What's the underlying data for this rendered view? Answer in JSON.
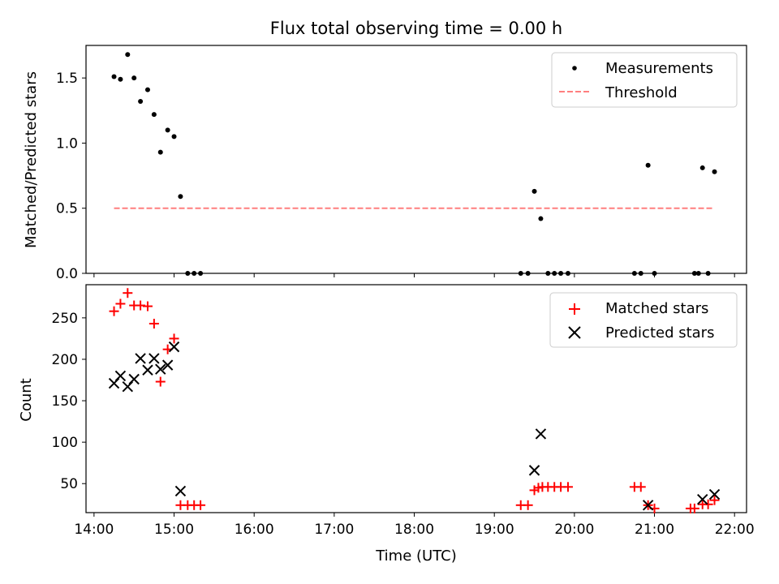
{
  "chart_data": [
    {
      "type": "scatter",
      "title": "Flux total observing time = 0.00 h",
      "ylabel": "Matched/Predicted stars",
      "xlabel": "",
      "xlim": [
        13.9,
        22.15
      ],
      "ylim": [
        0,
        1.75
      ],
      "yticks": [
        0,
        0.5,
        1.0,
        1.5
      ],
      "ytick_labels": [
        "0.0",
        "0.5",
        "1.0",
        "1.5"
      ],
      "xticks": [
        14,
        15,
        16,
        17,
        18,
        19,
        20,
        21,
        22
      ],
      "grid": false,
      "legend_position": "top-right",
      "series": [
        {
          "name": "Measurements",
          "kind": "points",
          "color": "#000000",
          "x": [
            14.25,
            14.33,
            14.42,
            14.5,
            14.58,
            14.67,
            14.75,
            14.83,
            14.92,
            15.0,
            15.08,
            15.17,
            15.25,
            15.33,
            19.33,
            19.42,
            19.5,
            19.58,
            19.67,
            19.75,
            19.83,
            19.92,
            20.75,
            20.83,
            20.92,
            21.0,
            21.5,
            21.55,
            21.6,
            21.67,
            21.75
          ],
          "y": [
            1.51,
            1.49,
            1.68,
            1.5,
            1.32,
            1.41,
            1.22,
            0.93,
            1.1,
            1.05,
            0.59,
            0.0,
            0.0,
            0.0,
            0.0,
            0.0,
            0.63,
            0.42,
            0.0,
            0.0,
            0.0,
            0.0,
            0.0,
            0.0,
            0.83,
            0.0,
            0.0,
            0.0,
            0.81,
            0.0,
            0.78
          ]
        },
        {
          "name": "Threshold",
          "kind": "dashed-line",
          "color": "#ff7f7f",
          "x": [
            14.25,
            21.75
          ],
          "y": [
            0.5,
            0.5
          ]
        }
      ]
    },
    {
      "type": "scatter",
      "title": "",
      "ylabel": "Count",
      "xlabel": "Time (UTC)",
      "xlim": [
        13.9,
        22.15
      ],
      "ylim": [
        15,
        290
      ],
      "yticks": [
        50,
        100,
        150,
        200,
        250
      ],
      "ytick_labels": [
        "50",
        "100",
        "150",
        "200",
        "250"
      ],
      "xticks": [
        14,
        15,
        16,
        17,
        18,
        19,
        20,
        21,
        22
      ],
      "xtick_labels": [
        "14:00",
        "15:00",
        "16:00",
        "17:00",
        "18:00",
        "19:00",
        "20:00",
        "21:00",
        "22:00"
      ],
      "grid": false,
      "legend_position": "top-right",
      "series": [
        {
          "name": "Matched stars",
          "kind": "plus",
          "color": "#ff0000",
          "x": [
            14.25,
            14.33,
            14.42,
            14.5,
            14.58,
            14.67,
            14.75,
            14.83,
            14.92,
            15.0,
            15.08,
            15.17,
            15.25,
            15.33,
            19.33,
            19.42,
            19.5,
            19.55,
            19.6,
            19.67,
            19.75,
            19.83,
            19.92,
            20.75,
            20.83,
            20.92,
            21.0,
            21.45,
            21.5,
            21.6,
            21.67,
            21.75
          ],
          "y": [
            258,
            267,
            280,
            265,
            265,
            264,
            243,
            173,
            212,
            225,
            24,
            24,
            24,
            24,
            24,
            24,
            42,
            45,
            46,
            46,
            46,
            46,
            46,
            46,
            46,
            24,
            20,
            20,
            20,
            25,
            25,
            30
          ]
        },
        {
          "name": "Predicted stars",
          "kind": "x",
          "color": "#000000",
          "x": [
            14.25,
            14.33,
            14.42,
            14.5,
            14.58,
            14.67,
            14.75,
            14.83,
            14.92,
            15.0,
            15.08,
            19.5,
            19.58,
            20.92,
            21.6,
            21.75
          ],
          "y": [
            171,
            180,
            167,
            176,
            201,
            187,
            201,
            188,
            193,
            215,
            41,
            66,
            110,
            24,
            31,
            37
          ]
        }
      ]
    }
  ]
}
